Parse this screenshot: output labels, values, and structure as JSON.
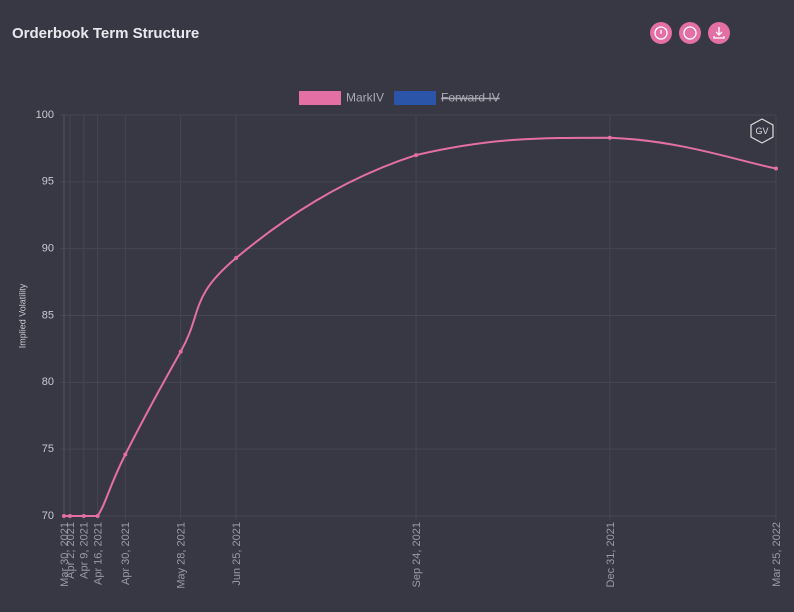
{
  "chart_data": {
    "type": "line",
    "title": "Orderbook Term Structure",
    "y_label": "Implied Volatility",
    "logo": "GV",
    "x": [
      "Mar 30, 2021",
      "Apr 2, 2021",
      "Apr 9, 2021",
      "Apr 16, 2021",
      "Apr 30, 2021",
      "May 28, 2021",
      "Jun 25, 2021",
      "Sep 24, 2021",
      "Dec 31, 2021",
      "Mar 25, 2022"
    ],
    "series": [
      {
        "name": "MarkIV",
        "color": "#e46fa5",
        "values": [
          70,
          70,
          70,
          70,
          74.6,
          82.3,
          89.3,
          97.0,
          98.3,
          96.0
        ]
      },
      {
        "name": "Forward IV",
        "color": "#2b55a8",
        "hidden": true,
        "values": [
          null,
          null,
          null,
          null,
          null,
          null,
          null,
          null,
          null,
          null
        ]
      }
    ],
    "ylim": [
      70,
      100
    ],
    "yticks": [
      70,
      75,
      80,
      85,
      90,
      95,
      100
    ],
    "grid": true
  }
}
